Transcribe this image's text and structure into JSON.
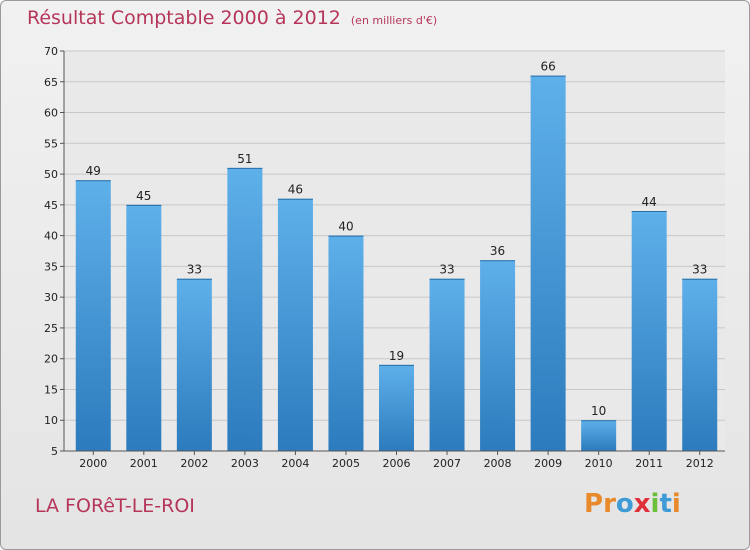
{
  "header": {
    "title": "Résultat Comptable 2000 à 2012",
    "unit": "(en milliers d'€)"
  },
  "footer": {
    "commune": "LA FORêT-LE-ROI",
    "logo": "Proxiti"
  },
  "colors": {
    "title": "#b6365a",
    "bar_top": "#5eb0ea",
    "bar_bottom": "#2c7bbd",
    "logo_letters": [
      "#e8892b",
      "#e8892b",
      "#3e9bd6",
      "#e0303a",
      "#6cbf3a",
      "#3e9bd6",
      "#e8892b"
    ]
  },
  "chart_data": {
    "type": "bar",
    "categories": [
      "2000",
      "2001",
      "2002",
      "2003",
      "2004",
      "2005",
      "2006",
      "2007",
      "2008",
      "2009",
      "2010",
      "2011",
      "2012"
    ],
    "values": [
      49,
      45,
      33,
      51,
      46,
      40,
      19,
      33,
      36,
      66,
      10,
      44,
      33
    ],
    "ylim": [
      5,
      70
    ],
    "yticks": [
      5,
      10,
      15,
      20,
      25,
      30,
      35,
      40,
      45,
      50,
      55,
      60,
      65,
      70
    ],
    "grid": true,
    "legend": "none"
  }
}
